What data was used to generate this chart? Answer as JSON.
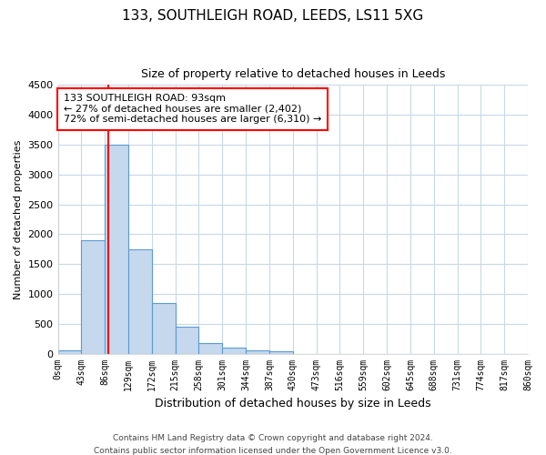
{
  "title": "133, SOUTHLEIGH ROAD, LEEDS, LS11 5XG",
  "subtitle": "Size of property relative to detached houses in Leeds",
  "xlabel": "Distribution of detached houses by size in Leeds",
  "ylabel": "Number of detached properties",
  "bar_bins": [
    0,
    43,
    86,
    129,
    172,
    215,
    258,
    301,
    344,
    387,
    430,
    473,
    516,
    559,
    602,
    645,
    688,
    731,
    774,
    817,
    860
  ],
  "bar_values": [
    50,
    1900,
    3500,
    1750,
    850,
    450,
    175,
    100,
    60,
    40,
    0,
    0,
    0,
    0,
    0,
    0,
    0,
    0,
    0,
    0
  ],
  "bar_color": "#c5d8ed",
  "bar_edgecolor": "#5b9bd5",
  "property_line_x": 93,
  "property_line_color": "red",
  "ylim": [
    0,
    4500
  ],
  "yticks": [
    0,
    500,
    1000,
    1500,
    2000,
    2500,
    3000,
    3500,
    4000,
    4500
  ],
  "annotation_title": "133 SOUTHLEIGH ROAD: 93sqm",
  "annotation_line1": "← 27% of detached houses are smaller (2,402)",
  "annotation_line2": "72% of semi-detached houses are larger (6,310) →",
  "annotation_box_color": "white",
  "annotation_box_edgecolor": "red",
  "tick_labels": [
    "0sqm",
    "43sqm",
    "86sqm",
    "129sqm",
    "172sqm",
    "215sqm",
    "258sqm",
    "301sqm",
    "344sqm",
    "387sqm",
    "430sqm",
    "473sqm",
    "516sqm",
    "559sqm",
    "602sqm",
    "645sqm",
    "688sqm",
    "731sqm",
    "774sqm",
    "817sqm",
    "860sqm"
  ],
  "footer1": "Contains HM Land Registry data © Crown copyright and database right 2024.",
  "footer2": "Contains public sector information licensed under the Open Government Licence v3.0.",
  "background_color": "#ffffff",
  "grid_color": "#c8d8e8"
}
